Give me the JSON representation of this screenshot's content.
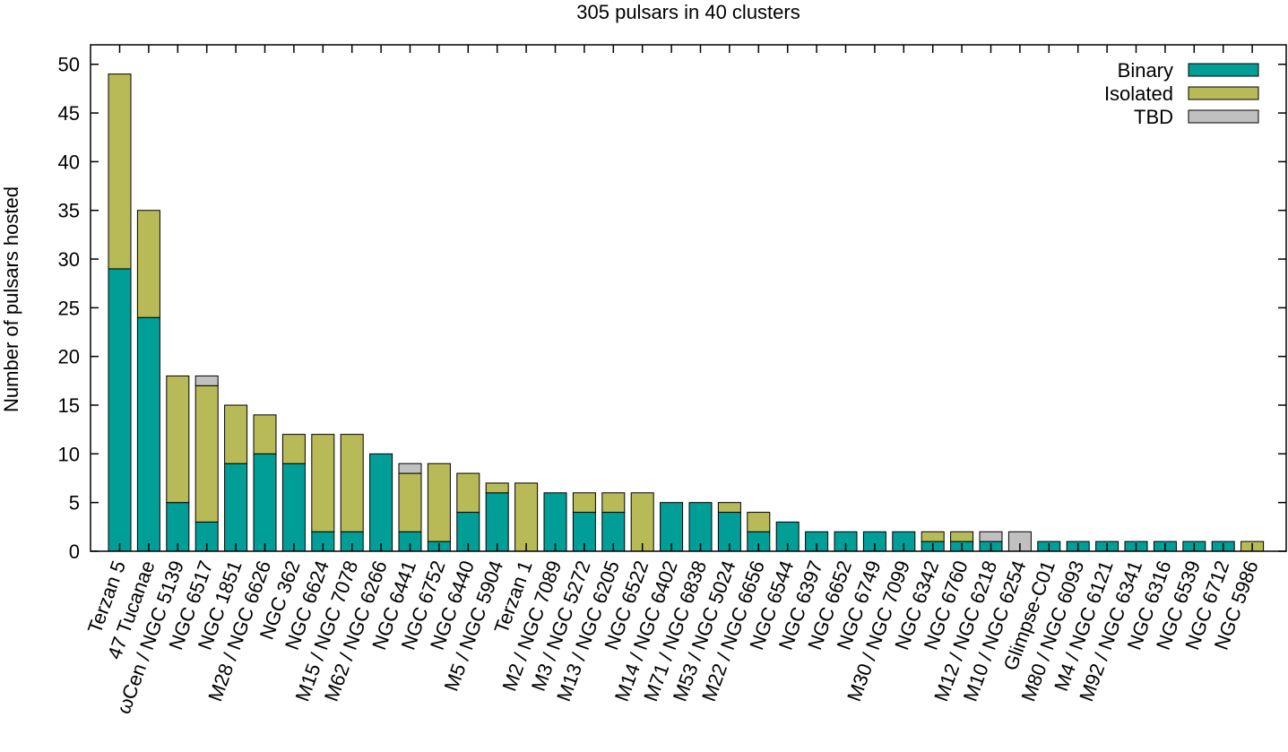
{
  "chart_data": {
    "type": "bar",
    "stacked": true,
    "title": "305 pulsars in 40 clusters",
    "xlabel": "",
    "ylabel": "Number of pulsars hosted",
    "ylim": [
      0,
      52
    ],
    "yticks": [
      0,
      5,
      10,
      15,
      20,
      25,
      30,
      35,
      40,
      45,
      50
    ],
    "grid": false,
    "legend_position": "top-right",
    "categories": [
      "Terzan 5",
      "47 Tucanae",
      "ωCen / NGC 5139",
      "NGC 6517",
      "NGC 1851",
      "M28 / NGC 6626",
      "NGC 362",
      "NGC 6624",
      "M15 / NGC 7078",
      "M62 / NGC 6266",
      "NGC 6441",
      "NGC 6752",
      "NGC 6440",
      "M5 / NGC 5904",
      "Terzan 1",
      "M2 / NGC 7089",
      "M3 / NGC 5272",
      "M13 / NGC 6205",
      "NGC 6522",
      "M14 / NGC 6402",
      "M71 / NGC 6838",
      "M53 / NGC 5024",
      "M22 / NGC 6656",
      "NGC 6544",
      "NGC 6397",
      "NGC 6652",
      "NGC 6749",
      "M30 / NGC 7099",
      "NGC 6342",
      "NGC 6760",
      "M12 / NGC 6218",
      "M10 / NGC 6254",
      "Glimpse-C01",
      "M80 / NGC 6093",
      "M4 / NGC 6121",
      "M92 / NGC 6341",
      "NGC 6316",
      "NGC 6539",
      "NGC 6712",
      "NGC 5986"
    ],
    "series": [
      {
        "name": "Binary",
        "color": "#009e96",
        "values": [
          29,
          24,
          5,
          3,
          9,
          10,
          9,
          2,
          2,
          10,
          2,
          1,
          4,
          6,
          0,
          6,
          4,
          4,
          0,
          5,
          5,
          4,
          2,
          3,
          2,
          2,
          2,
          2,
          1,
          1,
          1,
          0,
          1,
          1,
          1,
          1,
          1,
          1,
          1,
          0
        ]
      },
      {
        "name": "Isolated",
        "color": "#b8ba58",
        "values": [
          20,
          11,
          13,
          14,
          6,
          4,
          3,
          10,
          10,
          0,
          6,
          8,
          4,
          1,
          7,
          0,
          2,
          2,
          6,
          0,
          0,
          1,
          2,
          0,
          0,
          0,
          0,
          0,
          1,
          1,
          0,
          0,
          0,
          0,
          0,
          0,
          0,
          0,
          0,
          1
        ]
      },
      {
        "name": "TBD",
        "color": "#c0c0c0",
        "values": [
          0,
          0,
          0,
          1,
          0,
          0,
          0,
          0,
          0,
          0,
          1,
          0,
          0,
          0,
          0,
          0,
          0,
          0,
          0,
          0,
          0,
          0,
          0,
          0,
          0,
          0,
          0,
          0,
          0,
          0,
          1,
          2,
          0,
          0,
          0,
          0,
          0,
          0,
          0,
          0
        ]
      }
    ]
  }
}
